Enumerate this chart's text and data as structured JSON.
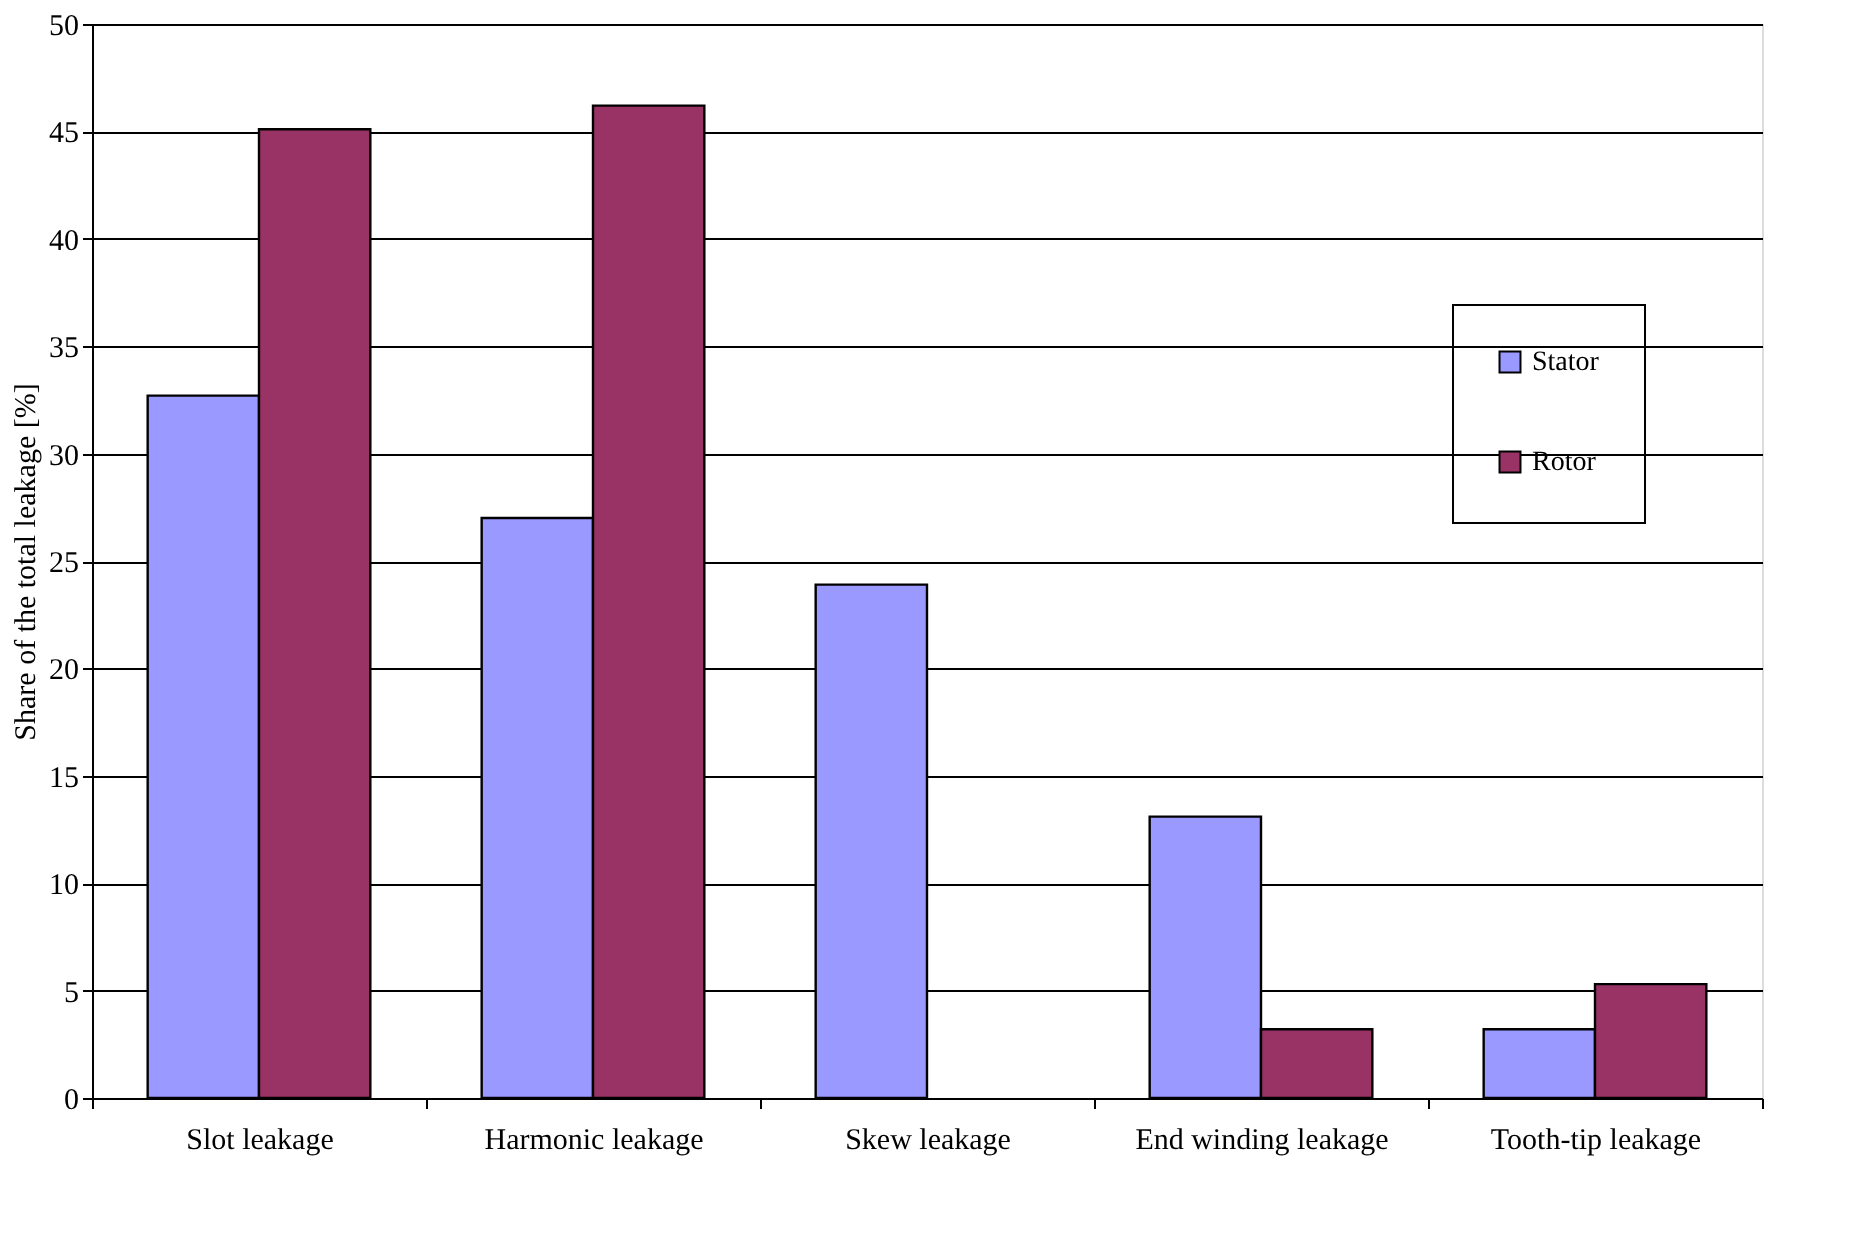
{
  "chart_data": {
    "type": "bar",
    "ylabel": "Share of the total leakage [%]",
    "categories": [
      "Slot leakage",
      "Harmonic leakage",
      "Skew leakage",
      "End winding leakage",
      "Tooth-tip leakage"
    ],
    "series": [
      {
        "name": "Stator",
        "color": "#9999ff",
        "values": [
          32.7,
          27.0,
          23.9,
          13.1,
          3.2
        ]
      },
      {
        "name": "Rotor",
        "color": "#993366",
        "values": [
          45.1,
          46.2,
          null,
          3.2,
          5.3
        ]
      }
    ],
    "ylim": [
      0,
      50
    ],
    "yticks": [
      0,
      5,
      10,
      15,
      20,
      25,
      30,
      35,
      40,
      45,
      50
    ],
    "grid": "y",
    "legend": "right"
  }
}
